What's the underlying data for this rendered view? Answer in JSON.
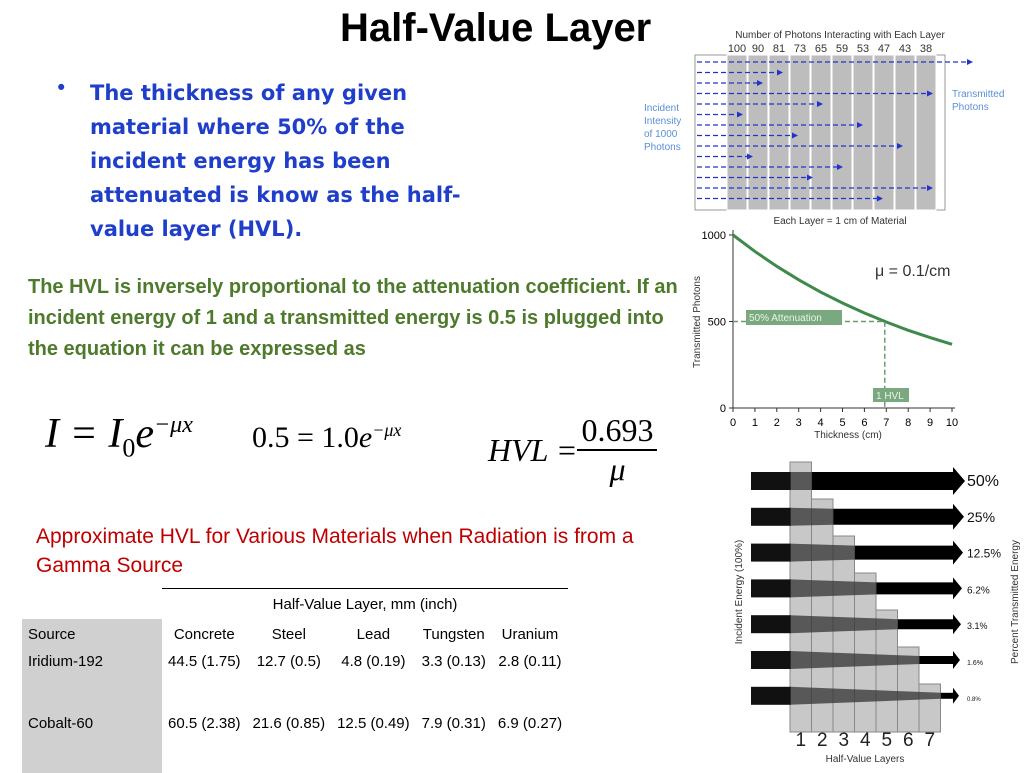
{
  "header": {
    "title": "Half-Value Layer"
  },
  "bullet": "The thickness of any given material where 50% of the incident energy has been attenuated is know as the half-value layer (HVL).",
  "paragraph": "The HVL is inversely proportional to the attenuation coefficient. If an incident energy of 1 and a transmitted energy is 0.5 is plugged into the equation it can be expressed as",
  "equations": [
    [
      "I = I",
      "0",
      "e",
      "−μx"
    ],
    [
      "0.5 = 1.0",
      "",
      "e",
      "−μx"
    ],
    [
      "HVL = ",
      "0.693",
      "μ"
    ]
  ],
  "caption": "Approximate HVL for Various Materials when Radiation is from a Gamma Source",
  "table": {
    "group_header": "Half-Value Layer, mm (inch)",
    "columns": [
      "Source",
      "Concrete",
      "Steel",
      "Lead",
      "Tungsten",
      "Uranium"
    ],
    "rows": [
      [
        "Iridium-192",
        "44.5 (1.75)",
        "12.7 (0.5)",
        "4.8 (0.19)",
        "3.3 (0.13)",
        "2.8 (0.11)"
      ],
      [
        "Cobalt-60",
        "60.5 (2.38)",
        "21.6 (0.85)",
        "12.5 (0.49)",
        "7.9 (0.31)",
        "6.9 (0.27)"
      ]
    ]
  },
  "layer_diagram": {
    "title": "Number of Photons Interacting with Each Layer",
    "counts": [
      "100",
      "90",
      "81",
      "73",
      "65",
      "59",
      "53",
      "47",
      "43",
      "38"
    ],
    "incident": "Incident Intensity of 1000 Photons",
    "transmitted": "Transmitted Photons",
    "footer": "Each Layer = 1 cm of Material"
  },
  "decay_chart": {
    "y_label": "Transmitted Photons",
    "x_label": "Thickness (cm)",
    "mu": "μ = 0.1/cm",
    "attenuation": "50% Attenuation",
    "hvl": "1 HVL",
    "xlim": [
      0,
      10
    ],
    "ylim": [
      0,
      1000
    ],
    "xticks": [
      0,
      1,
      2,
      3,
      4,
      5,
      6,
      7,
      8,
      9,
      10
    ],
    "yticks": [
      0,
      500,
      1000
    ],
    "x": [
      0,
      1,
      2,
      3,
      4,
      5,
      6,
      7,
      8,
      9,
      10
    ],
    "values": [
      1000,
      905,
      819,
      741,
      670,
      607,
      549,
      497,
      449,
      407,
      368
    ],
    "hvl_x": 6.93
  },
  "energy_diagram": {
    "percents": [
      "50%",
      "25%",
      "12.5%",
      "6.2%",
      "3.1%",
      "1.6%",
      "0.8%"
    ],
    "left_label": "Incident Energy (100%)",
    "right_label": "Percent Transmitted Energy",
    "layers": [
      "1",
      "2",
      "3",
      "4",
      "5",
      "6",
      "7"
    ],
    "footer": "Half-Value Layers"
  }
}
